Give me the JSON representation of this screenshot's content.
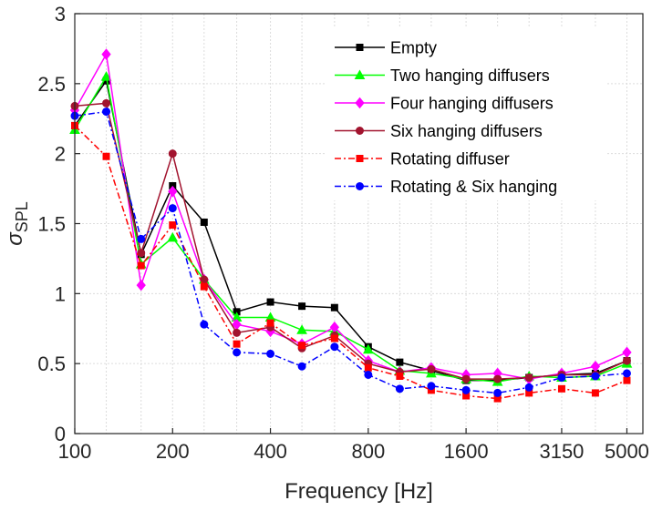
{
  "chart_data": {
    "type": "line",
    "xlabel": "Frequency [Hz]",
    "ylabel": "σ",
    "ylabel_sub": "SPL",
    "xscale": "log",
    "xlim": [
      100,
      5600
    ],
    "ylim": [
      0,
      3
    ],
    "grid": true,
    "legend_position": "top-right",
    "x": [
      100,
      125,
      160,
      200,
      250,
      315,
      400,
      500,
      630,
      800,
      1000,
      1250,
      1600,
      2000,
      2500,
      3150,
      4000,
      5000
    ],
    "xticks": [
      100,
      200,
      400,
      800,
      1600,
      3150,
      5000
    ],
    "xtick_labels": [
      "100",
      "200",
      "400",
      "800",
      "1600",
      "3150",
      "5000"
    ],
    "yticks": [
      0,
      0.5,
      1,
      1.5,
      2,
      2.5,
      3
    ],
    "ytick_labels": [
      "0",
      "0.5",
      "1",
      "1.5",
      "2",
      "2.5",
      "3"
    ],
    "series": [
      {
        "name": "Empty",
        "color": "#000000",
        "dash": "solid",
        "marker": "square",
        "values": [
          2.2,
          2.52,
          1.28,
          1.77,
          1.51,
          0.87,
          0.94,
          0.91,
          0.9,
          0.62,
          0.51,
          0.45,
          0.38,
          0.38,
          0.4,
          0.42,
          0.43,
          0.52
        ]
      },
      {
        "name": "Two hanging diffusers",
        "color": "#00ff00",
        "dash": "solid",
        "marker": "triangle",
        "values": [
          2.17,
          2.55,
          1.21,
          1.4,
          1.1,
          0.83,
          0.83,
          0.74,
          0.73,
          0.6,
          0.45,
          0.43,
          0.39,
          0.37,
          0.41,
          0.4,
          0.41,
          0.5
        ]
      },
      {
        "name": "Four hanging diffusers",
        "color": "#ff00ff",
        "dash": "solid",
        "marker": "diamond",
        "values": [
          2.31,
          2.71,
          1.06,
          1.73,
          1.1,
          0.78,
          0.73,
          0.64,
          0.76,
          0.52,
          0.44,
          0.47,
          0.42,
          0.43,
          0.39,
          0.43,
          0.48,
          0.58
        ]
      },
      {
        "name": "Six hanging diffusers",
        "color": "#a2142f",
        "dash": "solid",
        "marker": "circle",
        "values": [
          2.34,
          2.36,
          1.29,
          2.0,
          1.1,
          0.72,
          0.76,
          0.61,
          0.7,
          0.5,
          0.44,
          0.46,
          0.39,
          0.39,
          0.4,
          0.42,
          0.42,
          0.52
        ]
      },
      {
        "name": "Rotating diffuser",
        "color": "#ff0000",
        "dash": "dashdot",
        "marker": "square",
        "values": [
          2.2,
          1.98,
          1.2,
          1.49,
          1.05,
          0.64,
          0.79,
          0.63,
          0.68,
          0.47,
          0.41,
          0.31,
          0.27,
          0.25,
          0.29,
          0.32,
          0.29,
          0.38
        ]
      },
      {
        "name": "Rotating & Six hanging",
        "color": "#0000ff",
        "dash": "dashdot",
        "marker": "circle",
        "values": [
          2.27,
          2.3,
          1.39,
          1.61,
          0.78,
          0.58,
          0.57,
          0.48,
          0.62,
          0.42,
          0.32,
          0.34,
          0.31,
          0.29,
          0.33,
          0.4,
          0.41,
          0.43
        ]
      }
    ]
  }
}
